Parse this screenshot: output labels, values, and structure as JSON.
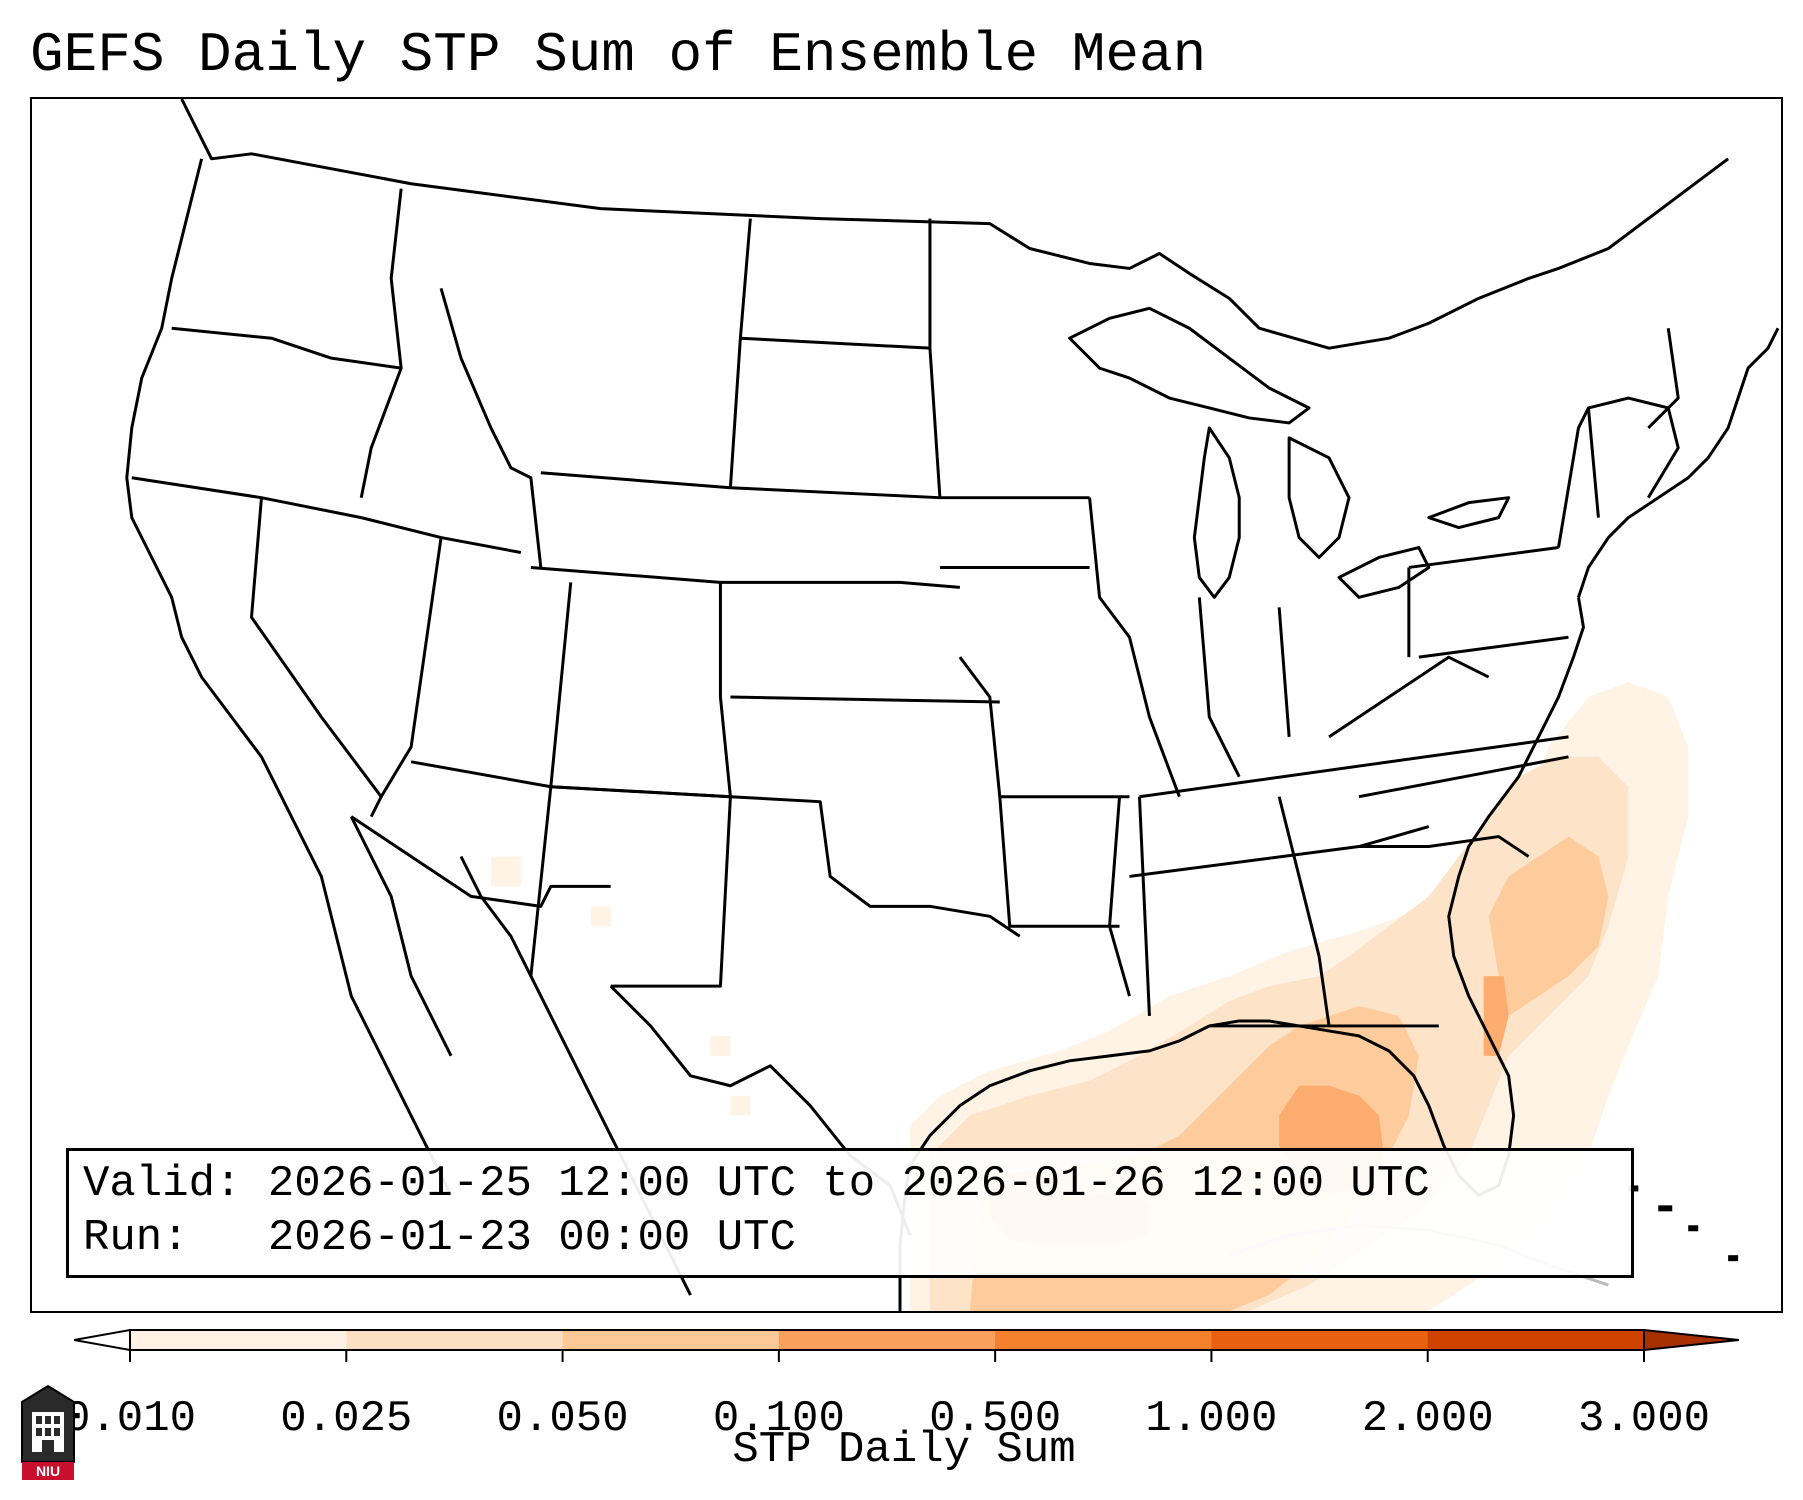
{
  "title": "GEFS Daily STP Sum of Ensemble Mean",
  "info": {
    "valid_label": "Valid:",
    "valid_value": "2026-01-25 12:00 UTC to 2026-01-26 12:00 UTC",
    "run_label": "Run:",
    "run_value": "2026-01-23 00:00 UTC"
  },
  "colorbar": {
    "title": "STP Daily Sum",
    "ticks": [
      "0.010",
      "0.025",
      "0.050",
      "0.100",
      "0.500",
      "1.000",
      "2.000",
      "3.000"
    ],
    "colors": [
      "#fff1e3",
      "#fde0c3",
      "#fdc896",
      "#fb9f5c",
      "#f5802e",
      "#e8610f",
      "#cf4200"
    ],
    "extend": "both"
  },
  "map": {
    "projection": "Lambert Conformal (CONUS)",
    "region": "Continental United States, Gulf of Mexico, northern Mexico, Cuba",
    "highlight_regions": [
      {
        "name": "Gulf of Mexico / Florida / Southeast coast",
        "max_value": 0.5
      }
    ]
  },
  "logo": {
    "text": "NIU",
    "color": "#c8102e"
  }
}
